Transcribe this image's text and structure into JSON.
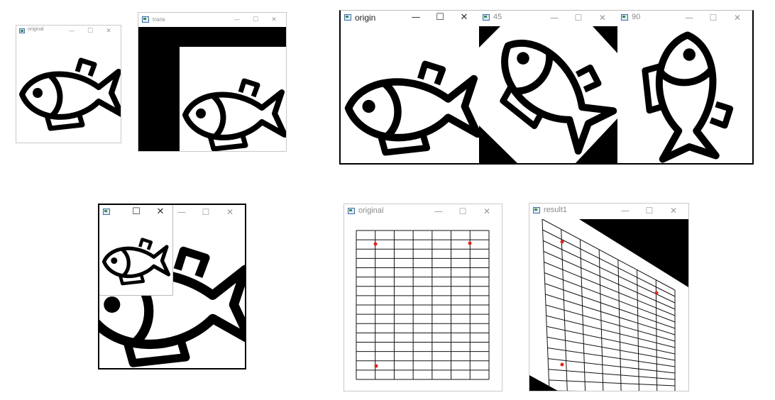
{
  "controls": {
    "minimize": "—",
    "maximize": "☐",
    "close": "✕"
  },
  "windows": {
    "translate_original": {
      "title": "original"
    },
    "translate_result": {
      "title": "trans"
    },
    "rotate_origin": {
      "title": "origin"
    },
    "rotate_45": {
      "title": "45"
    },
    "rotate_90": {
      "title": "90"
    },
    "scale_small": {
      "title": ""
    },
    "perspective_original": {
      "title": "original"
    },
    "perspective_result": {
      "title": "result1"
    }
  },
  "colors": {
    "marker": "#e0241b",
    "stroke": "#000000",
    "fill_black": "#000000"
  },
  "icons": {
    "window_icon": "app-window-icon",
    "fish": "fish-icon"
  }
}
